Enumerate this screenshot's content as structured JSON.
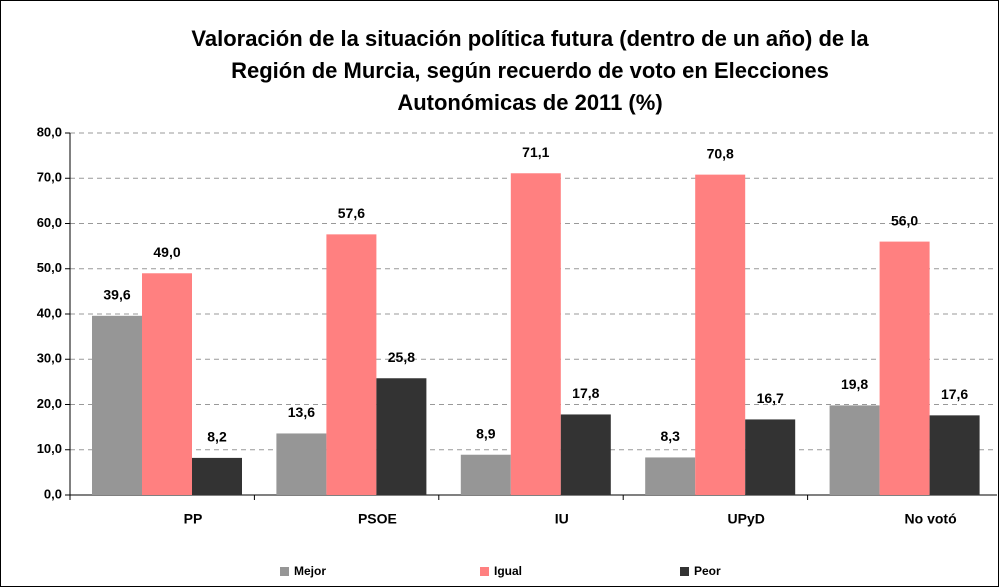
{
  "chart_data": {
    "type": "bar",
    "title": [
      "Valoración de la situación política futura (dentro de un año) de la",
      "Región de Murcia, según recuerdo de voto en Elecciones",
      "Autonómicas de 2011 (%)"
    ],
    "categories": [
      "PP",
      "PSOE",
      "IU",
      "UPyD",
      "No votó"
    ],
    "series": [
      {
        "name": "Mejor",
        "color": "#969696",
        "values": [
          39.6,
          13.6,
          8.9,
          8.3,
          19.8
        ],
        "value_labels": [
          "39,6",
          "13,6",
          "8,9",
          "8,3",
          "19,8"
        ]
      },
      {
        "name": "Igual",
        "color": "#ff8080",
        "values": [
          49.0,
          57.6,
          71.1,
          70.8,
          56.0
        ],
        "value_labels": [
          "49,0",
          "57,6",
          "71,1",
          "70,8",
          "56,0"
        ]
      },
      {
        "name": "Peor",
        "color": "#333333",
        "values": [
          8.2,
          25.8,
          17.8,
          16.7,
          17.6
        ],
        "value_labels": [
          "8,2",
          "25,8",
          "17,8",
          "16,7",
          "17,6"
        ]
      }
    ],
    "ylim": [
      0,
      80
    ],
    "yticks": [
      {
        "value": 0,
        "label": "0,0"
      },
      {
        "value": 10,
        "label": "10,0"
      },
      {
        "value": 20,
        "label": "20,0"
      },
      {
        "value": 30,
        "label": "30,0"
      },
      {
        "value": 40,
        "label": "40,0"
      },
      {
        "value": 50,
        "label": "50,0"
      },
      {
        "value": 60,
        "label": "60,0"
      },
      {
        "value": 70,
        "label": "70,0"
      },
      {
        "value": 80,
        "label": "80,0"
      }
    ],
    "grid": true,
    "legend": "bottom"
  }
}
